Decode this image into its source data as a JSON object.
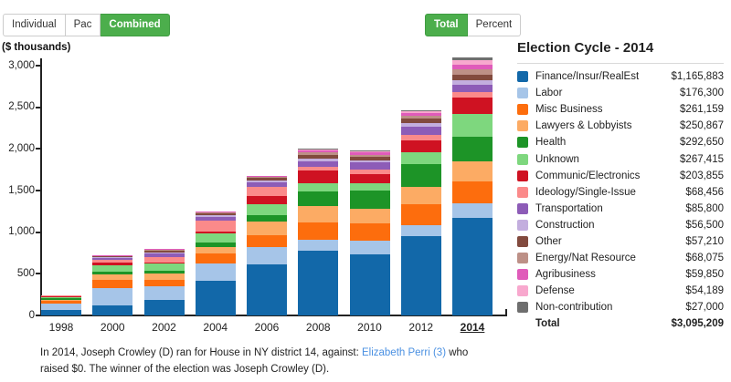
{
  "toolbar": {
    "contribution_type": {
      "options": [
        "Individual",
        "Pac",
        "Combined"
      ],
      "selected": "Combined"
    },
    "display_mode": {
      "options": [
        "Total",
        "Percent"
      ],
      "selected": "Total"
    }
  },
  "legend": {
    "title": "Election Cycle - 2014",
    "rows": [
      {
        "label": "Finance/Insur/RealEst",
        "amount": "$1,165,883",
        "color": "#1268a9"
      },
      {
        "label": "Labor",
        "amount": "$176,300",
        "color": "#a6c5e8"
      },
      {
        "label": "Misc Business",
        "amount": "$261,159",
        "color": "#fd6d0d"
      },
      {
        "label": "Lawyers & Lobbyists",
        "amount": "$250,867",
        "color": "#fcab64"
      },
      {
        "label": "Health",
        "amount": "$292,650",
        "color": "#1d9427"
      },
      {
        "label": "Unknown",
        "amount": "$267,415",
        "color": "#7ed77e"
      },
      {
        "label": "Communic/Electronics",
        "amount": "$203,855",
        "color": "#cf1222"
      },
      {
        "label": "Ideology/Single-Issue",
        "amount": "$68,456",
        "color": "#fb8a8a"
      },
      {
        "label": "Transportation",
        "amount": "$85,800",
        "color": "#8d5cb7"
      },
      {
        "label": "Construction",
        "amount": "$56,500",
        "color": "#c3aede"
      },
      {
        "label": "Other",
        "amount": "$57,210",
        "color": "#824a3e"
      },
      {
        "label": "Energy/Nat Resource",
        "amount": "$68,075",
        "color": "#bd9087"
      },
      {
        "label": "Agribusiness",
        "amount": "$59,850",
        "color": "#e05bba"
      },
      {
        "label": "Defense",
        "amount": "$54,189",
        "color": "#f8a8ce"
      },
      {
        "label": "Non-contribution",
        "amount": "$27,000",
        "color": "#6e6e6e"
      }
    ],
    "total": {
      "label": "Total",
      "amount": "$3,095,209"
    }
  },
  "caption": {
    "text_before": "In 2014, Joseph Crowley (D) ran for House in NY district 14, against: ",
    "link_text": "Elizabeth Perri (3)",
    "text_after": " who raised $0. The winner of the election was Joseph Crowley (D)."
  },
  "chart_data": {
    "type": "bar",
    "stacked": true,
    "ylabel": "($ thousands)",
    "ylim": [
      0,
      3000
    ],
    "yticks": [
      0,
      500,
      1000,
      1500,
      2000,
      2500,
      3000
    ],
    "ytick_labels": [
      "0",
      "500",
      "1,000",
      "1,500",
      "2,000",
      "2,500",
      "3,000"
    ],
    "grid": false,
    "legend_position": "right",
    "categories": [
      "1998",
      "2000",
      "2002",
      "2004",
      "2006",
      "2008",
      "2010",
      "2012",
      "2014"
    ],
    "selected_category": "2014",
    "units": "thousands of US dollars",
    "series": [
      {
        "name": "Finance/Insur/RealEst",
        "color": "#1268a9",
        "values": [
          60,
          120,
          180,
          420,
          615,
          775,
          730,
          950,
          1165.883
        ]
      },
      {
        "name": "Labor",
        "color": "#a6c5e8",
        "values": [
          80,
          210,
          165,
          205,
          210,
          135,
          170,
          130,
          176.3
        ]
      },
      {
        "name": "Misc Business",
        "color": "#fd6d0d",
        "values": [
          35,
          95,
          80,
          120,
          140,
          210,
          205,
          250,
          261.159
        ]
      },
      {
        "name": "Lawyers & Lobbyists",
        "color": "#fcab64",
        "values": [
          12,
          65,
          80,
          80,
          160,
          190,
          175,
          215,
          250.867
        ]
      },
      {
        "name": "Health",
        "color": "#1d9427",
        "values": [
          15,
          35,
          30,
          55,
          75,
          180,
          215,
          270,
          292.65
        ]
      },
      {
        "name": "Unknown",
        "color": "#7ed77e",
        "values": [
          20,
          80,
          85,
          100,
          130,
          100,
          90,
          145,
          267.415
        ]
      },
      {
        "name": "Communic/Electronics",
        "color": "#cf1222",
        "values": [
          10,
          25,
          15,
          30,
          100,
          145,
          110,
          145,
          203.855
        ]
      },
      {
        "name": "Ideology/Single-Issue",
        "color": "#fb8a8a",
        "values": [
          5,
          40,
          70,
          125,
          110,
          45,
          55,
          60,
          68.456
        ]
      },
      {
        "name": "Transportation",
        "color": "#8d5cb7",
        "values": [
          3,
          18,
          35,
          45,
          55,
          65,
          90,
          100,
          85.8
        ]
      },
      {
        "name": "Construction",
        "color": "#c3aede",
        "values": [
          2,
          8,
          10,
          20,
          25,
          35,
          25,
          45,
          56.5
        ]
      },
      {
        "name": "Other",
        "color": "#824a3e",
        "values": [
          3,
          12,
          30,
          25,
          30,
          45,
          40,
          50,
          57.21
        ]
      },
      {
        "name": "Energy/Nat Resource",
        "color": "#bd9087",
        "values": [
          0,
          5,
          8,
          10,
          12,
          30,
          25,
          35,
          68.075
        ]
      },
      {
        "name": "Agribusiness",
        "color": "#e05bba",
        "values": [
          0,
          4,
          6,
          8,
          10,
          25,
          30,
          40,
          59.85
        ]
      },
      {
        "name": "Defense",
        "color": "#f8a8ce",
        "values": [
          0,
          2,
          4,
          5,
          5,
          15,
          15,
          20,
          54.189
        ]
      },
      {
        "name": "Non-contribution",
        "color": "#6e6e6e",
        "values": [
          0,
          1,
          2,
          2,
          3,
          5,
          5,
          10,
          27.0
        ]
      }
    ],
    "totals": [
      245,
      720,
      800,
      1250,
      1680,
      2000,
      1980,
      2465,
      3095.209
    ]
  }
}
